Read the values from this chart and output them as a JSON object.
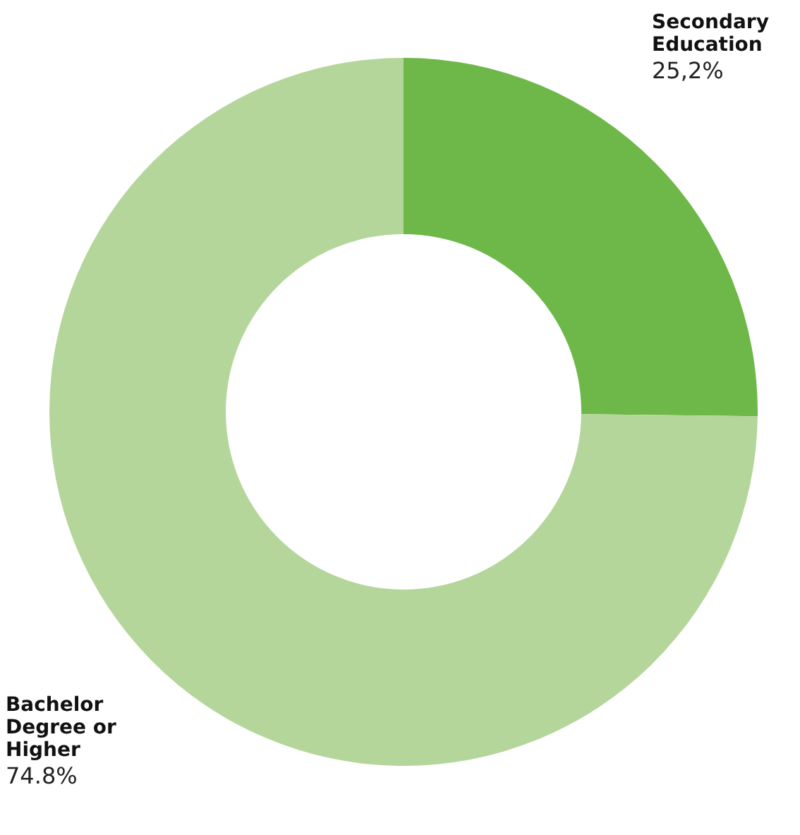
{
  "chart_data": {
    "type": "donut",
    "categories": [
      "Secondary Education",
      "Bachelor Degree or Higher"
    ],
    "values": [
      25.2,
      74.8
    ],
    "colors": [
      "#6db848",
      "#b5d69b"
    ],
    "value_labels": [
      "25,2%",
      "74.8%"
    ],
    "legend": false
  }
}
